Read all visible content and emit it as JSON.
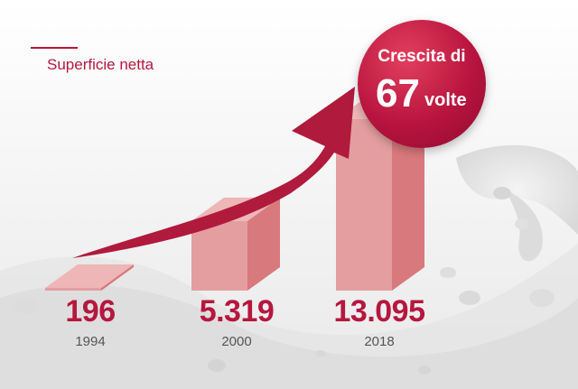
{
  "legend": {
    "label": "Superficie netta"
  },
  "badge": {
    "line1": "Crescita di",
    "multiplier": "67",
    "unit": "volte"
  },
  "colors": {
    "accent": "#b5173f",
    "bar_front": "#e49ea0",
    "bar_side": "#d8797d",
    "bar_top": "#eeb6b7"
  },
  "chart_data": {
    "type": "bar",
    "categories": [
      "1994",
      "2000",
      "2018"
    ],
    "values": [
      196,
      5319,
      13095
    ],
    "value_labels": [
      "196",
      "5.319",
      "13.095"
    ],
    "title": "",
    "xlabel": "",
    "ylabel": "",
    "series": [
      {
        "name": "Superficie netta",
        "values": [
          196,
          5319,
          13095
        ]
      }
    ]
  }
}
